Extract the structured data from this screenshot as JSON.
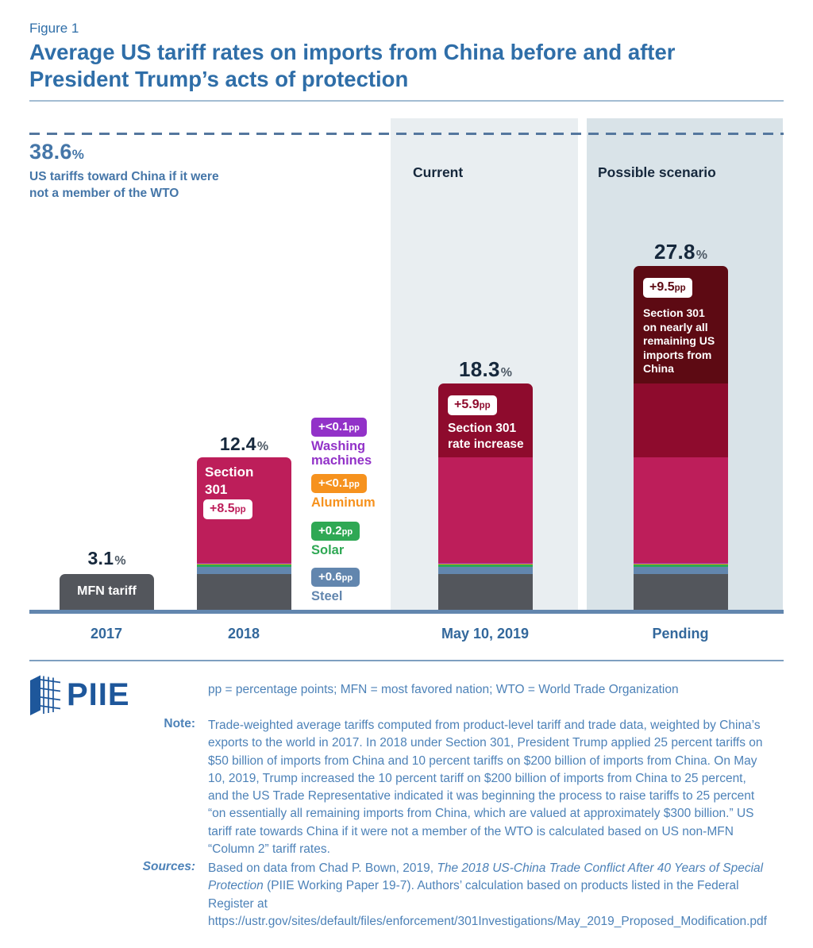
{
  "header": {
    "figure_label": "Figure 1",
    "title": "Average US tariff rates on imports from China before and after President Trump’s acts of protection"
  },
  "benchmark": {
    "value": "38.6",
    "sign": "%",
    "caption": "US tariffs toward China if it were not a member of the WTO"
  },
  "panels": {
    "current": "Current",
    "scenario": "Possible scenario"
  },
  "chart_data": {
    "type": "bar",
    "stacked": true,
    "unit": "percent average tariff rate",
    "categories": [
      "2017",
      "2018",
      "May 10, 2019",
      "Pending"
    ],
    "totals": [
      "3.1",
      "12.4",
      "18.3",
      "27.8"
    ],
    "series": [
      {
        "name": "MFN tariff",
        "color": "#53565c",
        "values": [
          3.1,
          3.1,
          3.1,
          3.1
        ]
      },
      {
        "name": "Steel",
        "label": "+0.6pp",
        "color": "#6286ae",
        "values": [
          0,
          0.6,
          0.6,
          0.6
        ]
      },
      {
        "name": "Solar",
        "label": "+0.2pp",
        "color": "#2fa854",
        "values": [
          0,
          0.2,
          0.2,
          0.2
        ]
      },
      {
        "name": "Aluminum",
        "label": "+<0.1pp",
        "color": "#f6921e",
        "values": [
          0,
          0.05,
          0.05,
          0.05
        ]
      },
      {
        "name": "Washing machines",
        "label": "+<0.1pp",
        "color": "#9232c8",
        "values": [
          0,
          0.05,
          0.05,
          0.05
        ]
      },
      {
        "name": "Section 301",
        "label": "+8.5pp",
        "color": "#bd1e5a",
        "values": [
          0,
          8.5,
          8.5,
          8.5
        ]
      },
      {
        "name": "Section 301 rate increase",
        "label": "+5.9pp",
        "color": "#8e0b2d",
        "values": [
          0,
          0,
          5.9,
          5.9
        ]
      },
      {
        "name": "Section 301 on nearly all remaining US imports from China",
        "label": "+9.5pp",
        "color": "#5d0a13",
        "values": [
          0,
          0,
          0,
          9.5
        ]
      }
    ],
    "benchmark_line": {
      "value": 38.6,
      "label": "US tariffs toward China if it were not a member of the WTO",
      "style": "dashed"
    },
    "ylim": [
      0,
      38.6
    ],
    "grid": false,
    "legend_position": "right of 2018 bar"
  },
  "annotations": {
    "mfn": "MFN tariff",
    "s301_title": "Section 301",
    "s301_badge": "+8.5",
    "inc_badge": "+5.9",
    "inc_label": "Section 301 rate increase",
    "rem_badge": "+9.5",
    "rem_label": "Section 301 on nearly all remaining US imports from China",
    "badge_unit": "pp",
    "percent_sign": "%"
  },
  "legend": {
    "items": [
      {
        "badge": "+<0.1",
        "unit": "pp",
        "label": "Washing machines",
        "color": "#9232c8"
      },
      {
        "badge": "+<0.1",
        "unit": "pp",
        "label": "Aluminum",
        "color": "#f6921e"
      },
      {
        "badge": "+0.2",
        "unit": "pp",
        "label": "Solar",
        "color": "#2fa854"
      },
      {
        "badge": "+0.6",
        "unit": "pp",
        "label": "Steel",
        "color": "#6286ae"
      }
    ]
  },
  "footer": {
    "logo_text": "PIIE",
    "abbreviations": "pp = percentage points; MFN = most favored nation; WTO = World Trade Organization",
    "note_label": "Note:",
    "note": "Trade-weighted average tariffs computed from product-level tariff and trade data, weighted by China’s exports to the world in 2017. In 2018 under Section 301, President Trump applied 25 percent tariffs on $50 billion of imports from China and 10 percent tariffs on $200 billion of imports from China. On May 10, 2019, Trump increased the 10 percent tariff on $200 billion of imports from China to 25 percent, and the US Trade Representative indicated it was beginning the process to raise tariffs to 25 percent “on essentially all remaining imports from China, which are valued at approximately $300 billion.” US tariff rate towards China if it were not a member of the WTO is calculated based on US non-MFN “Column 2” tariff rates.",
    "sources_label": "Sources:",
    "sources_text1": "Based on data from Chad P. Bown, 2019, ",
    "sources_italic": "The 2018 US-China Trade Conflict After 40 Years of Special Protection",
    "sources_text2": " (PIIE Working Paper 19-7). Authors’ calculation based on products listed in the Federal Register at https://ustr.gov/sites/default/files/enforcement/301Investigations/May_2019_Proposed_Modification.pdf"
  },
  "colors": {
    "title_blue": "#2f6ea8",
    "body_blue": "#4d82b8",
    "navy": "#16283c",
    "gray_sign": "#4e5a66",
    "steel_text": "#33689c",
    "benchmark_blue": "#4576a8",
    "crimson": "#bd1e5a",
    "dark_red": "#8e0b2d",
    "maroon": "#5d0a13",
    "bar_gray": "#53565c",
    "steel": "#6286ae",
    "green": "#2fa854",
    "orange": "#f6921e",
    "purple": "#9232c8",
    "panel_light": "#e9eef1",
    "panel_dark": "#d9e3e8",
    "dash": "#54779e",
    "logo_blue": "#1e579b"
  }
}
